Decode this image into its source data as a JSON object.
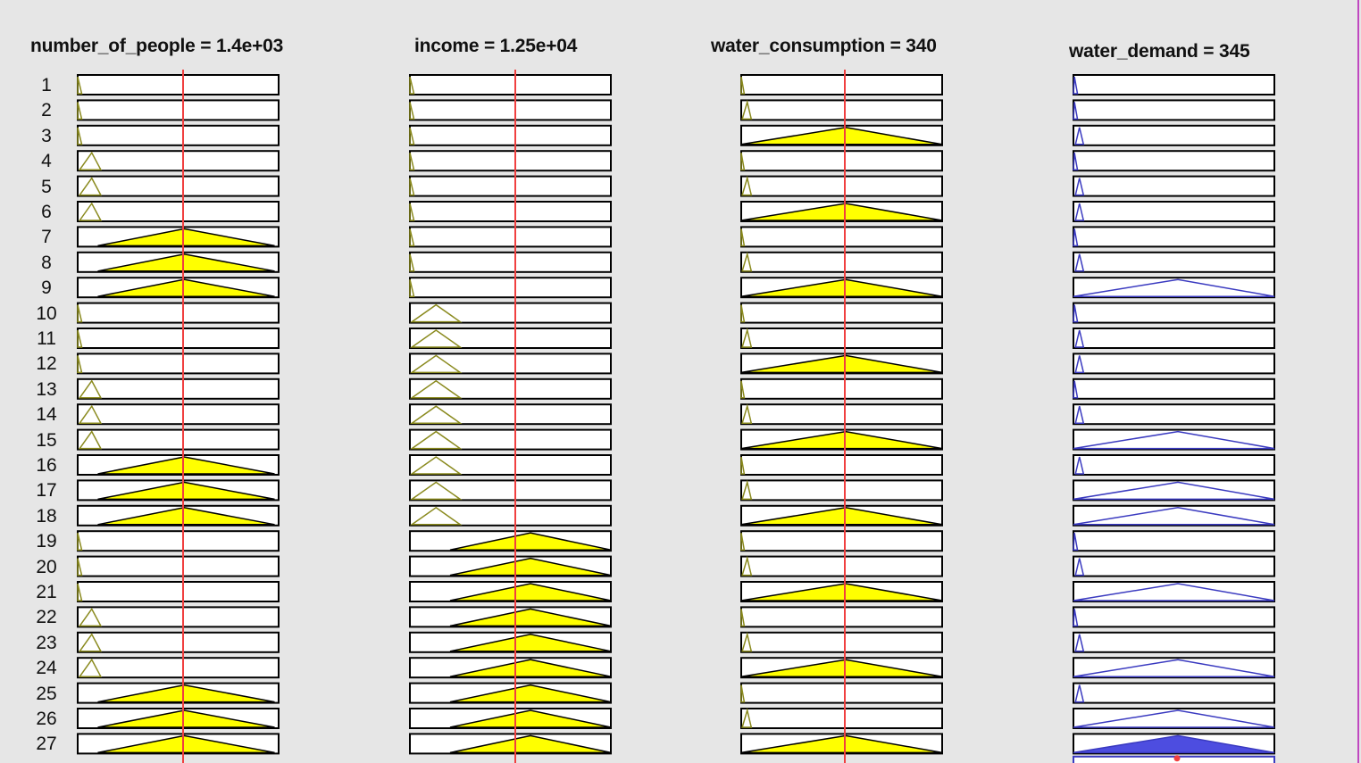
{
  "columns": [
    {
      "id": "number_of_people",
      "title": "number_of_people = 1.4e+03"
    },
    {
      "id": "income",
      "title": "income = 1.25e+04"
    },
    {
      "id": "water_consumption",
      "title": "water_consumption = 340"
    },
    {
      "id": "water_demand",
      "title": "water_demand = 345"
    }
  ],
  "rules": [
    {
      "num": "1",
      "mfs": [
        "tiny",
        "tiny",
        "tiny",
        "tiny"
      ]
    },
    {
      "num": "2",
      "mfs": [
        "tiny",
        "tiny",
        "small",
        "tiny"
      ]
    },
    {
      "num": "3",
      "mfs": [
        "tiny",
        "tiny",
        "large",
        "small"
      ]
    },
    {
      "num": "4",
      "mfs": [
        "small",
        "tiny",
        "tiny",
        "tiny"
      ]
    },
    {
      "num": "5",
      "mfs": [
        "small",
        "tiny",
        "small",
        "small"
      ]
    },
    {
      "num": "6",
      "mfs": [
        "small",
        "tiny",
        "large",
        "small"
      ]
    },
    {
      "num": "7",
      "mfs": [
        "large",
        "tiny",
        "tiny",
        "tiny"
      ]
    },
    {
      "num": "8",
      "mfs": [
        "large",
        "tiny",
        "small",
        "small"
      ]
    },
    {
      "num": "9",
      "mfs": [
        "large",
        "tiny",
        "large",
        "large"
      ]
    },
    {
      "num": "10",
      "mfs": [
        "tiny",
        "medium",
        "tiny",
        "tiny"
      ]
    },
    {
      "num": "11",
      "mfs": [
        "tiny",
        "medium",
        "small",
        "small"
      ]
    },
    {
      "num": "12",
      "mfs": [
        "tiny",
        "medium",
        "large",
        "small"
      ]
    },
    {
      "num": "13",
      "mfs": [
        "small",
        "medium",
        "tiny",
        "tiny"
      ]
    },
    {
      "num": "14",
      "mfs": [
        "small",
        "medium",
        "small",
        "small"
      ]
    },
    {
      "num": "15",
      "mfs": [
        "small",
        "medium",
        "large",
        "large"
      ]
    },
    {
      "num": "16",
      "mfs": [
        "large",
        "medium",
        "tiny",
        "small"
      ]
    },
    {
      "num": "17",
      "mfs": [
        "large",
        "medium",
        "small",
        "large"
      ]
    },
    {
      "num": "18",
      "mfs": [
        "large",
        "medium",
        "large",
        "large"
      ]
    },
    {
      "num": "19",
      "mfs": [
        "tiny",
        "large",
        "tiny",
        "tiny"
      ]
    },
    {
      "num": "20",
      "mfs": [
        "tiny",
        "large",
        "small",
        "small"
      ]
    },
    {
      "num": "21",
      "mfs": [
        "tiny",
        "large",
        "large",
        "large"
      ]
    },
    {
      "num": "22",
      "mfs": [
        "small",
        "large",
        "tiny",
        "tiny"
      ]
    },
    {
      "num": "23",
      "mfs": [
        "small",
        "large",
        "small",
        "small"
      ]
    },
    {
      "num": "24",
      "mfs": [
        "small",
        "large",
        "large",
        "large"
      ]
    },
    {
      "num": "25",
      "mfs": [
        "large",
        "large",
        "tiny",
        "small"
      ]
    },
    {
      "num": "26",
      "mfs": [
        "large",
        "large",
        "small",
        "large"
      ]
    },
    {
      "num": "27",
      "mfs": [
        "large",
        "large",
        "large",
        "large"
      ]
    }
  ],
  "colors": {
    "input_fill": "#ffff00",
    "input_outline": "#8a8a1e",
    "output_line": "#3a3ac0",
    "aggregate_fill": "#4d4de0",
    "cursor_line": "#f04040",
    "box_border": "#000000",
    "box_fill": "#ffffff"
  }
}
